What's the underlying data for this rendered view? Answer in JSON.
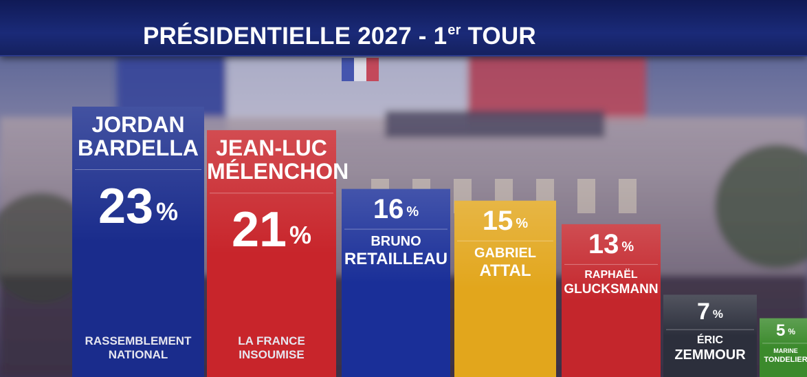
{
  "title": {
    "main": "PRÉSIDENTIELLE 2027 - 1",
    "sup": "er",
    "tail": " TOUR"
  },
  "chart_data": {
    "type": "bar",
    "unit": "%",
    "categories": [
      "JORDAN BARDELLA",
      "JEAN-LUC MÉLENCHON",
      "BRUNO RETAILLEAU",
      "GABRIEL ATTAL",
      "RAPHAËL GLUCKSMANN",
      "ÉRIC ZEMMOUR",
      "MARINE TONDELIER"
    ],
    "values": [
      23,
      21,
      16,
      15,
      13,
      7,
      5
    ],
    "bars": [
      {
        "first": "JORDAN",
        "last": "BARDELLA",
        "value": 23,
        "party_1": "RASSEMBLEMENT",
        "party_2": "NATIONAL",
        "color": "#1a2c8c"
      },
      {
        "first": "JEAN-LUC",
        "last": "MÉLENCHON",
        "value": 21,
        "party_1": "LA FRANCE",
        "party_2": "INSOUMISE",
        "color": "#c8252b"
      },
      {
        "first": "BRUNO",
        "last": "RETAILLEAU",
        "value": 16,
        "party_1": "",
        "party_2": "",
        "color": "#1a2f98"
      },
      {
        "first": "GABRIEL",
        "last": "ATTAL",
        "value": 15,
        "party_1": "",
        "party_2": "",
        "color": "#e2a61c"
      },
      {
        "first": "RAPHAËL",
        "last": "GLUCKSMANN",
        "value": 13,
        "party_1": "",
        "party_2": "",
        "color": "#c4262c"
      },
      {
        "first": "ÉRIC",
        "last": "ZEMMOUR",
        "value": 7,
        "party_1": "",
        "party_2": "",
        "color": "#2c2f3c"
      },
      {
        "first": "MARINE",
        "last": "TONDELIER",
        "value": 5,
        "party_1": "",
        "party_2": "",
        "color": "#3b8a2c"
      }
    ]
  }
}
